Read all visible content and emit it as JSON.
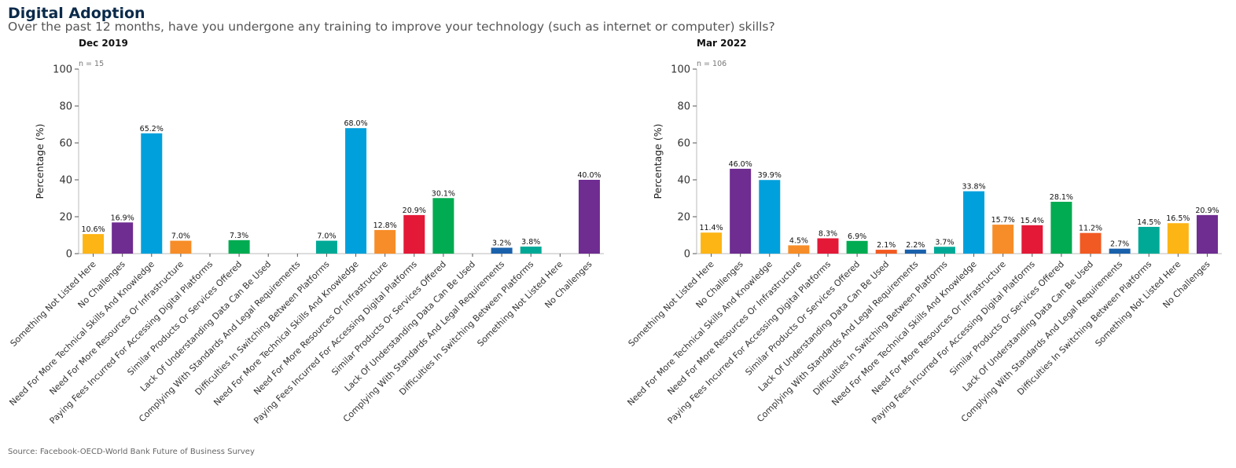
{
  "page": {
    "title": "Digital Adoption",
    "subtitle": "Over the past 12 months, have you undergone any training to improve your technology (such as internet or computer) skills?",
    "source": "Source: Facebook-OECD-World Bank Future of Business Survey"
  },
  "chart_data": [
    {
      "type": "bar",
      "title": "Dec 2019",
      "note": "n = 15",
      "ylabel": "Percentage (%)",
      "xlabel": "",
      "ylim": [
        0,
        100
      ],
      "yticks": [
        0,
        20,
        40,
        60,
        80,
        100
      ],
      "grid": false,
      "categories": [
        "Something Not Listed Here",
        "No Challenges",
        "Need For More Technical Skills And Knowledge",
        "Need For More Resources Or Infrastructure",
        "Paying Fees Incurred For Accessing Digital Platforms",
        "Similar Products Or Services Offered",
        "Lack Of Understanding Data Can Be Used",
        "Complying With Standards And Legal Requirements",
        "Difficulties In Switching Between Platforms",
        "Need For More Technical Skills And Knowledge",
        "Need For More Resources Or Infrastructure",
        "Paying Fees Incurred For Accessing Digital Platforms",
        "Similar Products Or Services Offered",
        "Lack Of Understanding Data Can Be Used",
        "Complying With Standards And Legal Requirements",
        "Difficulties In Switching Between Platforms",
        "Something Not Listed Here",
        "No Challenges"
      ],
      "values": [
        10.6,
        16.9,
        65.2,
        7.0,
        null,
        7.3,
        null,
        null,
        7.0,
        68.0,
        12.8,
        20.9,
        30.1,
        null,
        3.2,
        3.8,
        null,
        40.0
      ],
      "labels": [
        "10.6%",
        "16.9%",
        "65.2%",
        "7.0%",
        "",
        "7.3%",
        "",
        "",
        "7.0%",
        "68.0%",
        "12.8%",
        "20.9%",
        "30.1%",
        "",
        "3.2%",
        "3.8%",
        "",
        "40.0%"
      ],
      "colors": [
        "#FDB515",
        "#6F2C91",
        "#00A0DC",
        "#F78D28",
        "#E31937",
        "#00AB51",
        "#F15A22",
        "#1A61AB",
        "#00A996",
        "#00A0DC",
        "#F78D28",
        "#E31937",
        "#00AB51",
        "#F15A22",
        "#1A61AB",
        "#00A996",
        "#FDB515",
        "#6F2C91"
      ]
    },
    {
      "type": "bar",
      "title": "Mar 2022",
      "note": "n = 106",
      "ylabel": "Percentage (%)",
      "xlabel": "",
      "ylim": [
        0,
        100
      ],
      "yticks": [
        0,
        20,
        40,
        60,
        80,
        100
      ],
      "grid": false,
      "categories": [
        "Something Not Listed Here",
        "No Challenges",
        "Need For More Technical Skills And Knowledge",
        "Need For More Resources Or Infrastructure",
        "Paying Fees Incurred For Accessing Digital Platforms",
        "Similar Products Or Services Offered",
        "Lack Of Understanding Data Can Be Used",
        "Complying With Standards And Legal Requirements",
        "Difficulties In Switching Between Platforms",
        "Need For More Technical Skills And Knowledge",
        "Need For More Resources Or Infrastructure",
        "Paying Fees Incurred For Accessing Digital Platforms",
        "Similar Products Or Services Offered",
        "Lack Of Understanding Data Can Be Used",
        "Complying With Standards And Legal Requirements",
        "Difficulties In Switching Between Platforms",
        "Something Not Listed Here",
        "No Challenges"
      ],
      "values": [
        11.4,
        46.0,
        39.9,
        4.5,
        8.3,
        6.9,
        2.1,
        2.2,
        3.7,
        33.8,
        15.7,
        15.4,
        28.1,
        11.2,
        2.7,
        14.5,
        16.5,
        20.9
      ],
      "labels": [
        "11.4%",
        "46.0%",
        "39.9%",
        "4.5%",
        "8.3%",
        "6.9%",
        "2.1%",
        "2.2%",
        "3.7%",
        "33.8%",
        "15.7%",
        "15.4%",
        "28.1%",
        "11.2%",
        "2.7%",
        "14.5%",
        "16.5%",
        "20.9%"
      ],
      "colors": [
        "#FDB515",
        "#6F2C91",
        "#00A0DC",
        "#F78D28",
        "#E31937",
        "#00AB51",
        "#F15A22",
        "#1A61AB",
        "#00A996",
        "#00A0DC",
        "#F78D28",
        "#E31937",
        "#00AB51",
        "#F15A22",
        "#1A61AB",
        "#00A996",
        "#FDB515",
        "#6F2C91"
      ]
    }
  ]
}
